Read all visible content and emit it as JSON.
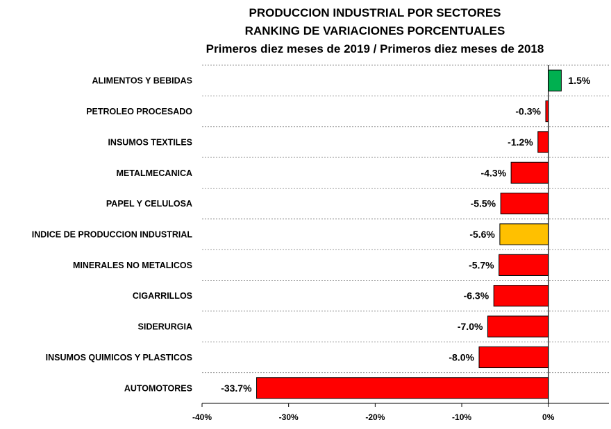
{
  "chart_data": {
    "type": "bar",
    "orientation": "horizontal",
    "title": [
      "PRODUCCION INDUSTRIAL POR SECTORES",
      "RANKING DE VARIACIONES PORCENTUALES",
      "Primeros diez meses de 2019 / Primeros diez meses de 2018"
    ],
    "categories": [
      "ALIMENTOS Y BEBIDAS",
      "PETROLEO PROCESADO",
      "INSUMOS TEXTILES",
      "METALMECANICA",
      "PAPEL Y CELULOSA",
      "INDICE DE PRODUCCION INDUSTRIAL",
      "MINERALES NO METALICOS",
      "CIGARRILLOS",
      "SIDERURGIA",
      "INSUMOS QUIMICOS Y PLASTICOS",
      "AUTOMOTORES"
    ],
    "values": [
      1.5,
      -0.3,
      -1.2,
      -4.3,
      -5.5,
      -5.6,
      -5.7,
      -6.3,
      -7.0,
      -8.0,
      -33.7
    ],
    "value_labels": [
      "1.5%",
      "-0.3%",
      "-1.2%",
      "-4.3%",
      "-5.5%",
      "-5.6%",
      "-5.7%",
      "-6.3%",
      "-7.0%",
      "-8.0%",
      "-33.7%"
    ],
    "bar_colors": [
      "#00b050",
      "#ff0000",
      "#ff0000",
      "#ff0000",
      "#ff0000",
      "#ffc000",
      "#ff0000",
      "#ff0000",
      "#ff0000",
      "#ff0000",
      "#ff0000"
    ],
    "xlim": [
      -40,
      7
    ],
    "x_ticks": [
      -40,
      -30,
      -20,
      -10,
      0
    ],
    "x_tick_labels": [
      "-40%",
      "-30%",
      "-20%",
      "-10%",
      "0%"
    ],
    "grid": "horizontal dashed",
    "legend": "none"
  }
}
